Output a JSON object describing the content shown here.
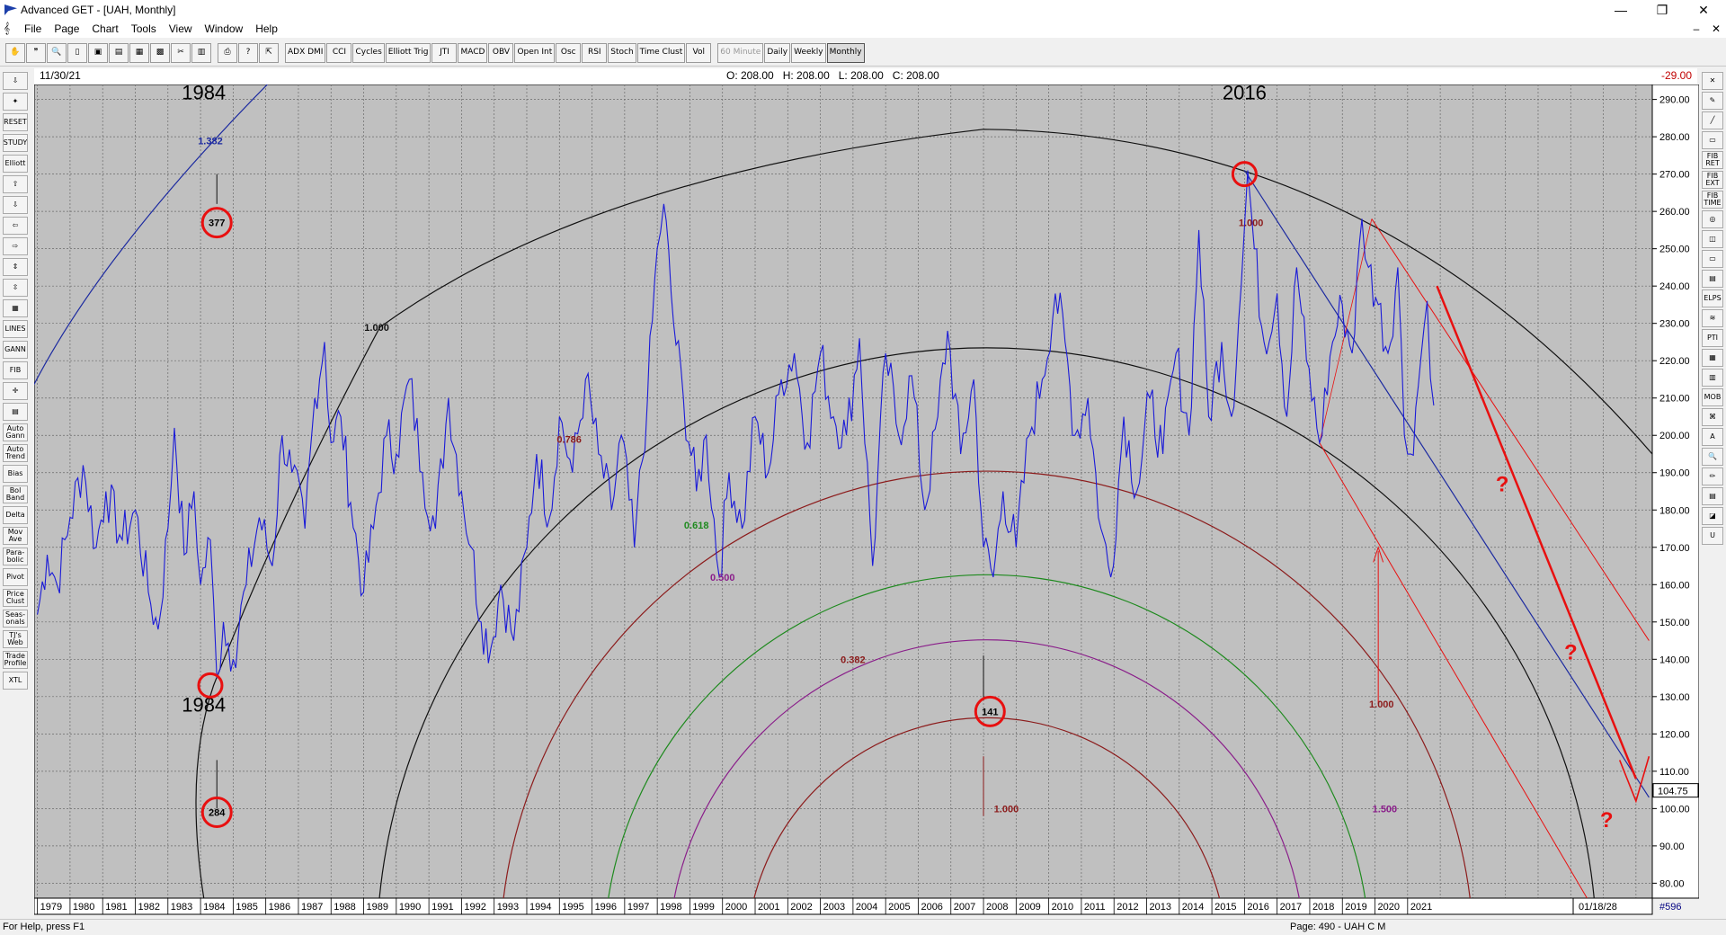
{
  "window": {
    "title": "Advanced GET - [UAH, Monthly]",
    "min": "—",
    "max": "❐",
    "close": "✕"
  },
  "menu": [
    "File",
    "Page",
    "Chart",
    "Tools",
    "View",
    "Window",
    "Help"
  ],
  "mdi_controls": {
    "min": "–",
    "close": "✕"
  },
  "toolbar": [
    {
      "label": "✋",
      "name": "hand-tool-button"
    },
    {
      "label": "❞",
      "name": "quote-tool-button"
    },
    {
      "label": "🔍",
      "name": "zoom-tool-button"
    },
    {
      "label": "▯",
      "name": "new-page-button"
    },
    {
      "label": "▣",
      "name": "save-button"
    },
    {
      "label": "▤",
      "name": "open-button"
    },
    {
      "label": "▦",
      "name": "copy-button"
    },
    {
      "label": "▩",
      "name": "layout-button"
    },
    {
      "label": "✂",
      "name": "cut-button"
    },
    {
      "label": "▥",
      "name": "grid-button"
    },
    {
      "label": "⎙",
      "name": "print-button"
    },
    {
      "label": "?",
      "name": "help-button"
    },
    {
      "label": "⇱",
      "name": "context-help-button"
    },
    {
      "label": "ADX DMI",
      "name": "adx-dmi-button"
    },
    {
      "label": "CCI",
      "name": "cci-button"
    },
    {
      "label": "Cycles",
      "name": "cycles-button"
    },
    {
      "label": "Elliott Trig",
      "name": "elliott-trig-button"
    },
    {
      "label": "JTI",
      "name": "jti-button"
    },
    {
      "label": "MACD",
      "name": "macd-button"
    },
    {
      "label": "OBV",
      "name": "obv-button"
    },
    {
      "label": "Open Int",
      "name": "open-int-button"
    },
    {
      "label": "Osc",
      "name": "osc-button"
    },
    {
      "label": "RSI",
      "name": "rsi-button"
    },
    {
      "label": "Stoch",
      "name": "stoch-button"
    },
    {
      "label": "Time Clust",
      "name": "time-clust-button"
    },
    {
      "label": "Vol",
      "name": "vol-button"
    },
    {
      "label": "60 Minute",
      "name": "60-minute-button"
    },
    {
      "label": "Daily",
      "name": "daily-button"
    },
    {
      "label": "Weekly",
      "name": "weekly-button"
    },
    {
      "label": "Monthly",
      "name": "monthly-button"
    }
  ],
  "left_tools": [
    "⇩",
    "✦",
    "RESET",
    "STUDY",
    "Elliott",
    "⇧",
    "⇩",
    "⇦",
    "⇨",
    "⇕",
    "⇳",
    "▦",
    "LINES",
    "GANN",
    "FIB",
    "✛",
    "▤",
    "Auto Gann",
    "Auto Trend",
    "Bias",
    "Bol Band",
    "Delta",
    "Mov Ave",
    "Para-bolic",
    "Pivot",
    "Price Clust",
    "Seas-onals",
    "TJ's Web",
    "Trade Profile",
    "XTL"
  ],
  "right_tools": [
    "✕",
    "✎",
    "╱",
    "▭",
    "FIB RET",
    "FIB EXT",
    "FIB TIME",
    "◎",
    "◫",
    "▭",
    "▤",
    "ELPS",
    "≋",
    "PTI",
    "▦",
    "▥",
    "MOB",
    "⌘",
    "A",
    "🔍",
    "✏",
    "▤",
    "◪",
    "U"
  ],
  "info": {
    "date": "11/30/21",
    "ohlc": "O: 208.00   H: 208.00   L: 208.00   C: 208.00",
    "change": "-29.00"
  },
  "status": {
    "help": "For Help, press F1",
    "page": "Page: 490 - UAH C M"
  },
  "colors": {
    "price": "#1a1ad8",
    "plot_bg": "#c0c0c0",
    "red": "#e81010",
    "dark_red": "#8c1c1c",
    "green": "#1e8a1e",
    "purple": "#8a1e8a",
    "navy": "#1c2aa0"
  },
  "chart_data": {
    "type": "line",
    "symbol": "UAH",
    "interval": "Monthly",
    "x_tick_labels": [
      "1979",
      "1980",
      "1981",
      "1982",
      "1983",
      "1984",
      "1985",
      "1986",
      "1987",
      "1988",
      "1989",
      "1990",
      "1991",
      "1992",
      "1993",
      "1994",
      "1995",
      "1996",
      "1997",
      "1998",
      "1999",
      "2000",
      "2001",
      "2002",
      "2003",
      "2004",
      "2005",
      "2006",
      "2007",
      "2008",
      "2009",
      "2010",
      "2011",
      "2012",
      "2013",
      "2014",
      "2015",
      "2016",
      "2017",
      "2018",
      "2019",
      "2020",
      "2021"
    ],
    "y_tick_labels": [
      "80.00",
      "90.00",
      "100.00",
      "110.00",
      "120.00",
      "130.00",
      "140.00",
      "150.00",
      "160.00",
      "170.00",
      "180.00",
      "190.00",
      "200.00",
      "210.00",
      "220.00",
      "230.00",
      "240.00",
      "250.00",
      "260.00",
      "270.00",
      "280.00",
      "290.00"
    ],
    "ylim": [
      76,
      294
    ],
    "xlim": [
      1978.9,
      2028.5
    ],
    "last_price_label": "104.75",
    "axis_end_date": "01/18/28",
    "bar_count": "#596",
    "series": [
      {
        "anchors": [
          [
            1979.0,
            152
          ],
          [
            1979.3,
            168
          ],
          [
            1979.6,
            160
          ],
          [
            1980.0,
            178
          ],
          [
            1980.4,
            192
          ],
          [
            1980.8,
            170
          ],
          [
            1981.1,
            185
          ],
          [
            1981.6,
            172
          ],
          [
            1982.0,
            180
          ],
          [
            1982.4,
            158
          ],
          [
            1982.7,
            148
          ],
          [
            1983.0,
            175
          ],
          [
            1983.2,
            202
          ],
          [
            1983.5,
            168
          ],
          [
            1983.8,
            185
          ],
          [
            1984.0,
            160
          ],
          [
            1984.3,
            172
          ],
          [
            1984.5,
            135
          ],
          [
            1984.7,
            150
          ],
          [
            1985.0,
            140
          ],
          [
            1985.4,
            160
          ],
          [
            1985.8,
            178
          ],
          [
            1986.2,
            165
          ],
          [
            1986.5,
            200
          ],
          [
            1986.8,
            190
          ],
          [
            1987.2,
            175
          ],
          [
            1987.5,
            210
          ],
          [
            1987.8,
            225
          ],
          [
            1988.0,
            198
          ],
          [
            1988.3,
            205
          ],
          [
            1988.6,
            182
          ],
          [
            1989.0,
            158
          ],
          [
            1989.3,
            175
          ],
          [
            1989.7,
            200
          ],
          [
            1990.0,
            195
          ],
          [
            1990.4,
            215
          ],
          [
            1990.8,
            190
          ],
          [
            1991.2,
            175
          ],
          [
            1991.6,
            210
          ],
          [
            1992.0,
            185
          ],
          [
            1992.3,
            170
          ],
          [
            1992.6,
            150
          ],
          [
            1992.9,
            143
          ],
          [
            1993.2,
            160
          ],
          [
            1993.6,
            145
          ],
          [
            1994.0,
            170
          ],
          [
            1994.3,
            195
          ],
          [
            1994.7,
            178
          ],
          [
            1995.0,
            205
          ],
          [
            1995.4,
            190
          ],
          [
            1995.8,
            215
          ],
          [
            1996.2,
            195
          ],
          [
            1996.6,
            180
          ],
          [
            1996.9,
            200
          ],
          [
            1997.3,
            170
          ],
          [
            1997.7,
            210
          ],
          [
            1998.0,
            250
          ],
          [
            1998.2,
            262
          ],
          [
            1998.5,
            230
          ],
          [
            1998.8,
            210
          ],
          [
            1999.2,
            185
          ],
          [
            1999.5,
            200
          ],
          [
            1999.9,
            162
          ],
          [
            2000.2,
            190
          ],
          [
            2000.6,
            175
          ],
          [
            2001.0,
            205
          ],
          [
            2001.4,
            190
          ],
          [
            2001.8,
            215
          ],
          [
            2002.2,
            222
          ],
          [
            2002.6,
            198
          ],
          [
            2003.0,
            222
          ],
          [
            2003.4,
            205
          ],
          [
            2003.8,
            200
          ],
          [
            2004.2,
            226
          ],
          [
            2004.6,
            165
          ],
          [
            2005.0,
            222
          ],
          [
            2005.4,
            200
          ],
          [
            2005.8,
            216
          ],
          [
            2006.2,
            180
          ],
          [
            2006.6,
            205
          ],
          [
            2006.9,
            228
          ],
          [
            2007.3,
            195
          ],
          [
            2007.7,
            215
          ],
          [
            2008.0,
            170
          ],
          [
            2008.3,
            162
          ],
          [
            2008.6,
            185
          ],
          [
            2009.0,
            170
          ],
          [
            2009.4,
            200
          ],
          [
            2009.8,
            215
          ],
          [
            2010.2,
            238
          ],
          [
            2010.5,
            225
          ],
          [
            2010.8,
            200
          ],
          [
            2011.2,
            210
          ],
          [
            2011.6,
            175
          ],
          [
            2011.9,
            162
          ],
          [
            2012.3,
            205
          ],
          [
            2012.7,
            185
          ],
          [
            2013.1,
            210
          ],
          [
            2013.5,
            195
          ],
          [
            2013.9,
            222
          ],
          [
            2014.3,
            200
          ],
          [
            2014.6,
            255
          ],
          [
            2014.9,
            205
          ],
          [
            2015.3,
            225
          ],
          [
            2015.6,
            205
          ],
          [
            2015.9,
            240
          ],
          [
            2016.1,
            271
          ],
          [
            2016.3,
            250
          ],
          [
            2016.6,
            225
          ],
          [
            2017.0,
            238
          ],
          [
            2017.3,
            205
          ],
          [
            2017.6,
            245
          ],
          [
            2017.9,
            220
          ],
          [
            2018.3,
            198
          ],
          [
            2018.7,
            225
          ],
          [
            2019.0,
            235
          ],
          [
            2019.3,
            222
          ],
          [
            2019.6,
            258
          ],
          [
            2019.8,
            245
          ],
          [
            2020.1,
            235
          ],
          [
            2020.4,
            222
          ],
          [
            2020.7,
            245
          ],
          [
            2020.9,
            200
          ],
          [
            2021.1,
            195
          ],
          [
            2021.4,
            220
          ],
          [
            2021.6,
            236
          ],
          [
            2021.8,
            208
          ]
        ]
      }
    ],
    "left_clusters": [
      {
        "label": "1984",
        "x": 1984.1,
        "y": 290
      },
      {
        "label": "1.382",
        "x": 1984.3,
        "y": 279
      },
      {
        "label": "377",
        "x": 1984.5,
        "y": 257
      },
      {
        "label": "1984",
        "x": 1984.1,
        "y": 126
      },
      {
        "label": "284",
        "x": 1984.5,
        "y": 99
      },
      {
        "label": "2016",
        "x": 2016.0,
        "y": 290
      },
      {
        "label": "141",
        "x": 2008.2,
        "y": 126
      }
    ],
    "fib_labels": [
      {
        "label": "1.000",
        "x": 1989.4,
        "y": 229
      },
      {
        "label": "0.786",
        "x": 1995.3,
        "y": 199
      },
      {
        "label": "0.618",
        "x": 1999.2,
        "y": 176
      },
      {
        "label": "0.500",
        "x": 2000.0,
        "y": 162
      },
      {
        "label": "0.382",
        "x": 2004.0,
        "y": 140
      },
      {
        "label": "1.000",
        "x": 2016.2,
        "y": 257
      },
      {
        "label": "1.000",
        "x": 2020.2,
        "y": 128
      },
      {
        "label": "1.500",
        "x": 2020.3,
        "y": 100
      },
      {
        "label": "1.000",
        "x": 2008.7,
        "y": 100
      }
    ],
    "question_marks": [
      {
        "label": "?",
        "x": 2023.9,
        "y": 185
      },
      {
        "label": "?",
        "x": 2026.0,
        "y": 140
      },
      {
        "label": "?",
        "x": 2027.1,
        "y": 95
      }
    ]
  }
}
